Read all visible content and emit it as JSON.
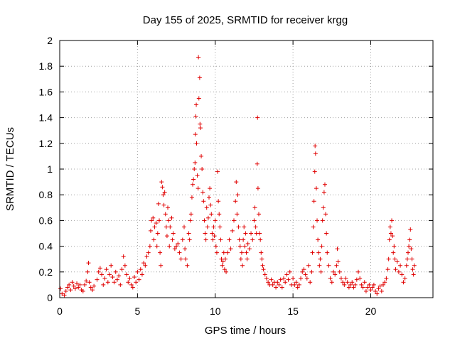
{
  "chart_data": {
    "type": "scatter",
    "title": "Day 155 of 2025, SRMTID for receiver krgg",
    "xlabel": "GPS time / hours",
    "ylabel": "SRMTID / TECUs",
    "xlim": [
      0,
      24
    ],
    "ylim": [
      0,
      2
    ],
    "xticks": [
      0,
      5,
      10,
      15,
      20
    ],
    "xtick_labels": [
      "0",
      "5",
      "10",
      "15",
      "20"
    ],
    "yticks": [
      0,
      0.2,
      0.4,
      0.6,
      0.8,
      1,
      1.2,
      1.4,
      1.6,
      1.8,
      2
    ],
    "ytick_labels": [
      "0",
      "0.2",
      "0.4",
      "0.6",
      "0.8",
      "1",
      "1.2",
      "1.4",
      "1.6",
      "1.8",
      "2"
    ],
    "grid": true,
    "marker": "plus",
    "color": "#e00000",
    "series": [
      {
        "name": "SRMTID",
        "points": [
          [
            0.05,
            0.07
          ],
          [
            0.15,
            0.03
          ],
          [
            0.3,
            0.02
          ],
          [
            0.4,
            0.05
          ],
          [
            0.5,
            0.08
          ],
          [
            0.6,
            0.1
          ],
          [
            0.7,
            0.06
          ],
          [
            0.8,
            0.12
          ],
          [
            0.9,
            0.09
          ],
          [
            1.0,
            0.07
          ],
          [
            1.1,
            0.11
          ],
          [
            1.2,
            0.08
          ],
          [
            1.3,
            0.1
          ],
          [
            1.4,
            0.06
          ],
          [
            1.5,
            0.05
          ],
          [
            1.6,
            0.1
          ],
          [
            1.7,
            0.13
          ],
          [
            1.8,
            0.2
          ],
          [
            1.85,
            0.27
          ],
          [
            1.9,
            0.12
          ],
          [
            2.0,
            0.08
          ],
          [
            2.1,
            0.06
          ],
          [
            2.2,
            0.09
          ],
          [
            2.4,
            0.14
          ],
          [
            2.5,
            0.2
          ],
          [
            2.6,
            0.23
          ],
          [
            2.7,
            0.18
          ],
          [
            2.8,
            0.1
          ],
          [
            2.9,
            0.15
          ],
          [
            3.0,
            0.22
          ],
          [
            3.1,
            0.12
          ],
          [
            3.2,
            0.18
          ],
          [
            3.3,
            0.25
          ],
          [
            3.4,
            0.16
          ],
          [
            3.5,
            0.12
          ],
          [
            3.6,
            0.2
          ],
          [
            3.7,
            0.14
          ],
          [
            3.8,
            0.17
          ],
          [
            3.9,
            0.1
          ],
          [
            4.0,
            0.22
          ],
          [
            4.1,
            0.32
          ],
          [
            4.2,
            0.25
          ],
          [
            4.3,
            0.18
          ],
          [
            4.4,
            0.12
          ],
          [
            4.5,
            0.15
          ],
          [
            4.6,
            0.1
          ],
          [
            4.7,
            0.08
          ],
          [
            4.8,
            0.16
          ],
          [
            4.9,
            0.12
          ],
          [
            5.0,
            0.2
          ],
          [
            5.1,
            0.14
          ],
          [
            5.2,
            0.22
          ],
          [
            5.3,
            0.18
          ],
          [
            5.4,
            0.27
          ],
          [
            5.5,
            0.25
          ],
          [
            5.6,
            0.32
          ],
          [
            5.7,
            0.35
          ],
          [
            5.8,
            0.4
          ],
          [
            5.85,
            0.52
          ],
          [
            5.9,
            0.6
          ],
          [
            6.0,
            0.62
          ],
          [
            6.05,
            0.45
          ],
          [
            6.1,
            0.55
          ],
          [
            6.2,
            0.58
          ],
          [
            6.25,
            0.4
          ],
          [
            6.3,
            0.5
          ],
          [
            6.35,
            0.73
          ],
          [
            6.4,
            0.6
          ],
          [
            6.45,
            0.35
          ],
          [
            6.5,
            0.25
          ],
          [
            6.55,
            0.9
          ],
          [
            6.6,
            0.86
          ],
          [
            6.65,
            0.8
          ],
          [
            6.7,
            0.72
          ],
          [
            6.75,
            0.82
          ],
          [
            6.8,
            0.65
          ],
          [
            6.85,
            0.55
          ],
          [
            6.9,
            0.48
          ],
          [
            6.95,
            0.7
          ],
          [
            7.0,
            0.6
          ],
          [
            7.05,
            0.4
          ],
          [
            7.1,
            0.55
          ],
          [
            7.2,
            0.62
          ],
          [
            7.25,
            0.45
          ],
          [
            7.3,
            0.5
          ],
          [
            7.4,
            0.38
          ],
          [
            7.5,
            0.4
          ],
          [
            7.6,
            0.42
          ],
          [
            7.7,
            0.35
          ],
          [
            7.8,
            0.3
          ],
          [
            7.9,
            0.45
          ],
          [
            8.0,
            0.55
          ],
          [
            8.05,
            0.38
          ],
          [
            8.1,
            0.3
          ],
          [
            8.2,
            0.25
          ],
          [
            8.3,
            0.5
          ],
          [
            8.35,
            0.45
          ],
          [
            8.4,
            0.6
          ],
          [
            8.45,
            0.65
          ],
          [
            8.5,
            0.78
          ],
          [
            8.55,
            0.88
          ],
          [
            8.6,
            0.92
          ],
          [
            8.65,
            1.0
          ],
          [
            8.7,
            1.05
          ],
          [
            8.72,
            1.27
          ],
          [
            8.75,
            1.41
          ],
          [
            8.78,
            1.5
          ],
          [
            8.8,
            1.2
          ],
          [
            8.85,
            0.95
          ],
          [
            8.9,
            0.85
          ],
          [
            8.92,
            1.87
          ],
          [
            8.95,
            1.55
          ],
          [
            9.0,
            1.71
          ],
          [
            9.02,
            1.35
          ],
          [
            9.05,
            1.32
          ],
          [
            9.1,
            1.1
          ],
          [
            9.15,
            1.0
          ],
          [
            9.2,
            0.82
          ],
          [
            9.25,
            0.75
          ],
          [
            9.3,
            0.6
          ],
          [
            9.35,
            0.5
          ],
          [
            9.4,
            0.45
          ],
          [
            9.45,
            0.7
          ],
          [
            9.5,
            0.55
          ],
          [
            9.55,
            0.62
          ],
          [
            9.6,
            0.78
          ],
          [
            9.65,
            0.85
          ],
          [
            9.7,
            0.72
          ],
          [
            9.75,
            0.65
          ],
          [
            9.8,
            0.5
          ],
          [
            9.85,
            0.45
          ],
          [
            9.9,
            0.55
          ],
          [
            9.95,
            0.48
          ],
          [
            10.0,
            0.6
          ],
          [
            10.05,
            0.4
          ],
          [
            10.1,
            0.35
          ],
          [
            10.15,
            0.98
          ],
          [
            10.2,
            0.75
          ],
          [
            10.25,
            0.65
          ],
          [
            10.3,
            0.55
          ],
          [
            10.35,
            0.45
          ],
          [
            10.4,
            0.3
          ],
          [
            10.45,
            0.25
          ],
          [
            10.5,
            0.28
          ],
          [
            10.55,
            0.35
          ],
          [
            10.6,
            0.22
          ],
          [
            10.65,
            0.3
          ],
          [
            10.7,
            0.2
          ],
          [
            10.8,
            0.35
          ],
          [
            10.9,
            0.45
          ],
          [
            11.0,
            0.38
          ],
          [
            11.1,
            0.52
          ],
          [
            11.2,
            0.6
          ],
          [
            11.3,
            0.75
          ],
          [
            11.35,
            0.9
          ],
          [
            11.4,
            0.65
          ],
          [
            11.45,
            0.8
          ],
          [
            11.5,
            0.55
          ],
          [
            11.55,
            0.45
          ],
          [
            11.6,
            0.4
          ],
          [
            11.65,
            0.3
          ],
          [
            11.7,
            0.35
          ],
          [
            11.75,
            0.25
          ],
          [
            11.8,
            0.45
          ],
          [
            11.85,
            0.55
          ],
          [
            11.9,
            0.4
          ],
          [
            11.95,
            0.5
          ],
          [
            12.0,
            0.35
          ],
          [
            12.05,
            0.3
          ],
          [
            12.1,
            0.42
          ],
          [
            12.2,
            0.38
          ],
          [
            12.3,
            0.5
          ],
          [
            12.4,
            0.45
          ],
          [
            12.5,
            0.6
          ],
          [
            12.55,
            0.7
          ],
          [
            12.6,
            0.55
          ],
          [
            12.65,
            0.5
          ],
          [
            12.7,
            1.04
          ],
          [
            12.72,
            1.4
          ],
          [
            12.75,
            0.85
          ],
          [
            12.8,
            0.65
          ],
          [
            12.85,
            0.5
          ],
          [
            12.9,
            0.45
          ],
          [
            12.95,
            0.35
          ],
          [
            13.0,
            0.3
          ],
          [
            13.05,
            0.25
          ],
          [
            13.1,
            0.22
          ],
          [
            13.2,
            0.18
          ],
          [
            13.3,
            0.15
          ],
          [
            13.4,
            0.12
          ],
          [
            13.5,
            0.1
          ],
          [
            13.6,
            0.14
          ],
          [
            13.7,
            0.1
          ],
          [
            13.8,
            0.12
          ],
          [
            13.9,
            0.08
          ],
          [
            14.0,
            0.12
          ],
          [
            14.1,
            0.1
          ],
          [
            14.2,
            0.14
          ],
          [
            14.3,
            0.08
          ],
          [
            14.4,
            0.15
          ],
          [
            14.5,
            0.12
          ],
          [
            14.6,
            0.18
          ],
          [
            14.7,
            0.14
          ],
          [
            14.8,
            0.2
          ],
          [
            14.9,
            0.1
          ],
          [
            15.0,
            0.15
          ],
          [
            15.1,
            0.1
          ],
          [
            15.2,
            0.12
          ],
          [
            15.3,
            0.08
          ],
          [
            15.4,
            0.1
          ],
          [
            15.5,
            0.15
          ],
          [
            15.6,
            0.2
          ],
          [
            15.7,
            0.22
          ],
          [
            15.8,
            0.18
          ],
          [
            15.9,
            0.15
          ],
          [
            16.0,
            0.25
          ],
          [
            16.1,
            0.12
          ],
          [
            16.2,
            0.2
          ],
          [
            16.25,
            0.35
          ],
          [
            16.3,
            0.55
          ],
          [
            16.35,
            0.75
          ],
          [
            16.4,
            0.98
          ],
          [
            16.42,
            1.18
          ],
          [
            16.45,
            1.12
          ],
          [
            16.5,
            0.85
          ],
          [
            16.55,
            0.6
          ],
          [
            16.6,
            0.45
          ],
          [
            16.65,
            0.35
          ],
          [
            16.7,
            0.25
          ],
          [
            16.75,
            0.3
          ],
          [
            16.8,
            0.2
          ],
          [
            16.85,
            0.4
          ],
          [
            16.9,
            0.6
          ],
          [
            16.95,
            0.7
          ],
          [
            17.0,
            0.82
          ],
          [
            17.05,
            0.88
          ],
          [
            17.1,
            0.65
          ],
          [
            17.15,
            0.5
          ],
          [
            17.2,
            0.35
          ],
          [
            17.3,
            0.25
          ],
          [
            17.4,
            0.15
          ],
          [
            17.5,
            0.12
          ],
          [
            17.6,
            0.2
          ],
          [
            17.7,
            0.18
          ],
          [
            17.8,
            0.25
          ],
          [
            17.85,
            0.38
          ],
          [
            17.9,
            0.28
          ],
          [
            18.0,
            0.2
          ],
          [
            18.1,
            0.15
          ],
          [
            18.2,
            0.12
          ],
          [
            18.3,
            0.1
          ],
          [
            18.4,
            0.15
          ],
          [
            18.5,
            0.12
          ],
          [
            18.6,
            0.08
          ],
          [
            18.7,
            0.1
          ],
          [
            18.8,
            0.12
          ],
          [
            18.9,
            0.08
          ],
          [
            19.0,
            0.1
          ],
          [
            19.1,
            0.14
          ],
          [
            19.2,
            0.2
          ],
          [
            19.3,
            0.15
          ],
          [
            19.4,
            0.1
          ],
          [
            19.5,
            0.08
          ],
          [
            19.6,
            0.12
          ],
          [
            19.7,
            0.05
          ],
          [
            19.8,
            0.08
          ],
          [
            19.9,
            0.1
          ],
          [
            20.0,
            0.06
          ],
          [
            20.1,
            0.08
          ],
          [
            20.2,
            0.1
          ],
          [
            20.3,
            0.05
          ],
          [
            20.4,
            0.03
          ],
          [
            20.5,
            0.07
          ],
          [
            20.6,
            0.09
          ],
          [
            20.7,
            0.05
          ],
          [
            20.8,
            0.1
          ],
          [
            20.9,
            0.12
          ],
          [
            21.0,
            0.15
          ],
          [
            21.1,
            0.22
          ],
          [
            21.15,
            0.3
          ],
          [
            21.2,
            0.45
          ],
          [
            21.25,
            0.55
          ],
          [
            21.3,
            0.5
          ],
          [
            21.35,
            0.6
          ],
          [
            21.4,
            0.48
          ],
          [
            21.45,
            0.35
          ],
          [
            21.5,
            0.4
          ],
          [
            21.55,
            0.3
          ],
          [
            21.6,
            0.22
          ],
          [
            21.7,
            0.28
          ],
          [
            21.8,
            0.2
          ],
          [
            21.9,
            0.25
          ],
          [
            22.0,
            0.18
          ],
          [
            22.1,
            0.12
          ],
          [
            22.2,
            0.15
          ],
          [
            22.3,
            0.25
          ],
          [
            22.35,
            0.3
          ],
          [
            22.4,
            0.35
          ],
          [
            22.45,
            0.4
          ],
          [
            22.5,
            0.45
          ],
          [
            22.55,
            0.53
          ],
          [
            22.6,
            0.38
          ],
          [
            22.65,
            0.3
          ],
          [
            22.7,
            0.22
          ],
          [
            22.75,
            0.18
          ],
          [
            22.8,
            0.25
          ]
        ]
      }
    ]
  }
}
